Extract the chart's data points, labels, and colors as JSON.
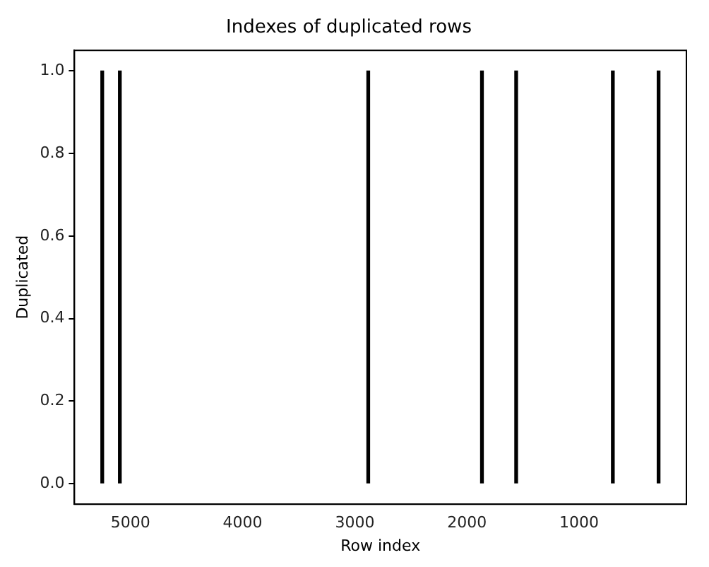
{
  "chart_data": {
    "type": "bar",
    "title": "Indexes of duplicated rows",
    "xlabel": "Row index",
    "ylabel": "Duplicated",
    "x": [
      5252,
      5095,
      2880,
      1866,
      1561,
      699,
      291
    ],
    "values": [
      1,
      1,
      1,
      1,
      1,
      1,
      1
    ],
    "color": "#000000",
    "xlim": [
      5500,
      43
    ],
    "xticks": [
      5000,
      4000,
      3000,
      2000,
      1000
    ],
    "ylim": [
      -0.05,
      1.05
    ],
    "yticks": [
      {
        "value": 0,
        "label": "0.0"
      },
      {
        "value": 0.2,
        "label": "0.2"
      },
      {
        "value": 0.4,
        "label": "0.4"
      },
      {
        "value": 0.6,
        "label": "0.6"
      },
      {
        "value": 0.8,
        "label": "0.8"
      },
      {
        "value": 1,
        "label": "1.0"
      }
    ],
    "grid": false,
    "legend": false
  }
}
